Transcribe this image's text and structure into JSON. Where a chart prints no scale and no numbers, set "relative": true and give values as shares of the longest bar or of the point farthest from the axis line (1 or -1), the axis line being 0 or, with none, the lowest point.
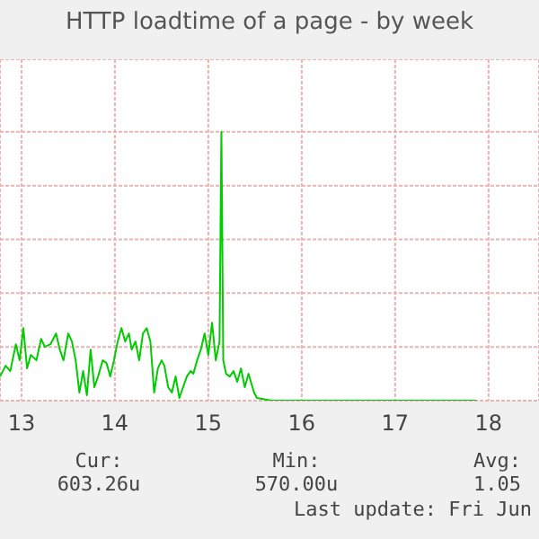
{
  "chart_data": {
    "type": "line",
    "title": "HTTP loadtime of a page - by week",
    "relative": true,
    "grid": true,
    "marker": "none",
    "xlim": [
      12.77,
      18.54
    ],
    "xticks": [
      13,
      14,
      15,
      16,
      17,
      18
    ],
    "series": [
      {
        "color": "#00cc00",
        "x": [
          12.77,
          12.83,
          12.88,
          12.94,
          12.98,
          13.02,
          13.06,
          13.1,
          13.16,
          13.21,
          13.25,
          13.31,
          13.37,
          13.41,
          13.45,
          13.5,
          13.54,
          13.58,
          13.62,
          13.66,
          13.7,
          13.74,
          13.78,
          13.82,
          13.87,
          13.91,
          13.95,
          13.99,
          14.03,
          14.07,
          14.11,
          14.15,
          14.18,
          14.22,
          14.26,
          14.3,
          14.34,
          14.38,
          14.42,
          14.46,
          14.5,
          14.53,
          14.57,
          14.61,
          14.65,
          14.69,
          14.73,
          14.77,
          14.81,
          14.84,
          14.88,
          14.92,
          14.96,
          15.0,
          15.04,
          15.08,
          15.12,
          15.14,
          15.16,
          15.19,
          15.23,
          15.27,
          15.31,
          15.35,
          15.39,
          15.43,
          15.49,
          15.52,
          15.68,
          17.87
        ],
        "values": [
          0.09,
          0.13,
          0.11,
          0.21,
          0.15,
          0.27,
          0.12,
          0.17,
          0.15,
          0.23,
          0.2,
          0.21,
          0.25,
          0.19,
          0.15,
          0.25,
          0.22,
          0.15,
          0.03,
          0.11,
          0.02,
          0.19,
          0.05,
          0.09,
          0.15,
          0.14,
          0.09,
          0.15,
          0.22,
          0.27,
          0.22,
          0.25,
          0.19,
          0.22,
          0.15,
          0.25,
          0.27,
          0.22,
          0.03,
          0.12,
          0.15,
          0.13,
          0.05,
          0.03,
          0.09,
          0.01,
          0.05,
          0.09,
          0.11,
          0.1,
          0.15,
          0.19,
          0.25,
          0.17,
          0.29,
          0.15,
          0.22,
          1,
          0.15,
          0.1,
          0.09,
          0.11,
          0.07,
          0.12,
          0.05,
          0.1,
          0.03,
          0.01,
          0,
          0
        ]
      }
    ],
    "annotations": [
      "Cur:",
      "603.26u",
      "Min:",
      "570.00u",
      "Avg:",
      "1.05",
      "Last update: Fri Jun"
    ]
  }
}
